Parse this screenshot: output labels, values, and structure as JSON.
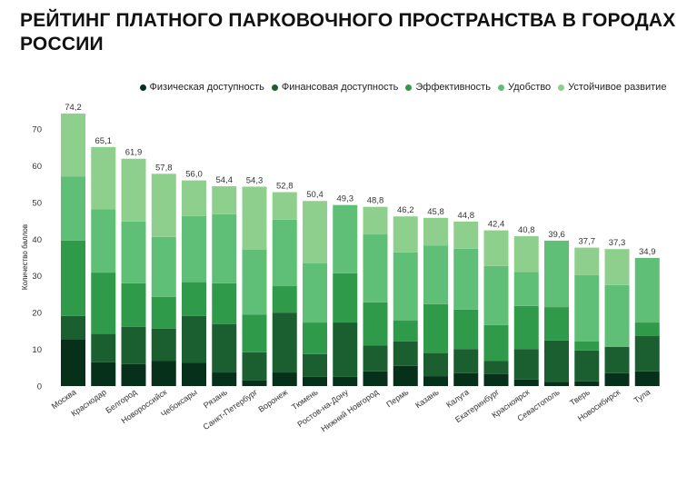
{
  "chart_data": {
    "type": "bar",
    "stacked": true,
    "title": "Рейтинг платного парковочного пространства в городах России",
    "xlabel": "",
    "ylabel": "Количество баллов",
    "ylim": [
      0,
      75
    ],
    "yticks": [
      0,
      10,
      20,
      30,
      40,
      50,
      60,
      70
    ],
    "grid": false,
    "legend_position": "top",
    "categories": [
      "Москва",
      "Краснодар",
      "Белгород",
      "Новороссийск",
      "Чебоксары",
      "Рязань",
      "Санкт-Петербург",
      "Воронеж",
      "Тюмень",
      "Ростов-на-Дону",
      "Нижний Новгород",
      "Пермь",
      "Казань",
      "Калуга",
      "Екатеринбург",
      "Красноярск",
      "Севастополь",
      "Тверь",
      "Новосибирск",
      "Тула"
    ],
    "totals": [
      "74,2",
      "65,1",
      "61,9",
      "57,8",
      "56,0",
      "54,4",
      "54,3",
      "52,8",
      "50,4",
      "49,3",
      "48,8",
      "46,2",
      "45,8",
      "44,8",
      "42,4",
      "40,8",
      "39,6",
      "37,7",
      "37,3",
      "34,9"
    ],
    "series": [
      {
        "name": "Физическая доступность",
        "color": "#06301a",
        "values": [
          12.8,
          6.5,
          6.0,
          6.8,
          6.4,
          3.7,
          1.5,
          3.7,
          2.5,
          2.5,
          4.0,
          5.5,
          2.7,
          3.5,
          3.3,
          1.8,
          1.1,
          1.3,
          3.5,
          4.0
        ]
      },
      {
        "name": "Финансовая доступность",
        "color": "#1b5e30",
        "values": [
          6.3,
          7.7,
          10.1,
          8.8,
          12.7,
          13.2,
          7.7,
          16.3,
          6.2,
          14.8,
          7.0,
          6.7,
          6.3,
          6.6,
          3.5,
          8.3,
          11.3,
          8.4,
          7.2,
          9.6
        ]
      },
      {
        "name": "Эффективность",
        "color": "#2f9a4a",
        "values": [
          20.5,
          16.7,
          11.9,
          8.7,
          9.2,
          11.1,
          10.3,
          7.2,
          8.6,
          13.4,
          11.8,
          5.7,
          13.3,
          10.7,
          9.8,
          11.7,
          9.1,
          2.5,
          0,
          3.7
        ]
      },
      {
        "name": "Удобство",
        "color": "#5fbf76",
        "values": [
          17.5,
          17.2,
          16.8,
          16.3,
          18.0,
          18.8,
          17.6,
          18.1,
          16.1,
          18.6,
          18.5,
          18.5,
          16.0,
          16.6,
          16.1,
          9.3,
          18.1,
          18.0,
          16.8,
          17.6
        ]
      },
      {
        "name": "Устойчивое развитие",
        "color": "#8fcf8e",
        "values": [
          17.1,
          17.0,
          17.1,
          17.2,
          9.7,
          7.6,
          17.2,
          7.5,
          17.0,
          0,
          7.5,
          9.8,
          7.5,
          7.4,
          9.7,
          9.7,
          0,
          7.5,
          9.8,
          0
        ]
      }
    ]
  }
}
